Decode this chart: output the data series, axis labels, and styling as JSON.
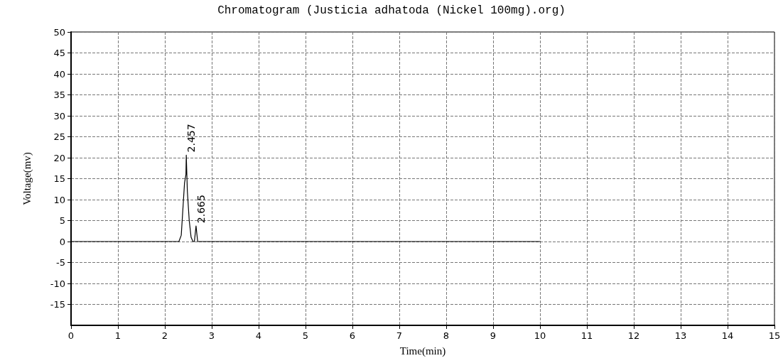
{
  "chart_data": {
    "type": "line",
    "title": "Chromatogram (Justicia adhatoda (Nickel 100mg).org)",
    "xlabel": "Time(min)",
    "ylabel": "Voltage(mv)",
    "x": [
      0,
      2.3,
      2.35,
      2.39,
      2.42,
      2.45,
      2.457,
      2.48,
      2.52,
      2.56,
      2.6,
      2.63,
      2.665,
      2.7,
      10
    ],
    "series": [
      {
        "color": "#000000",
        "values": [
          0,
          0,
          1.5,
          8.7,
          14,
          16,
          20.6,
          12,
          5,
          1,
          0,
          0,
          3.7,
          0,
          0
        ]
      }
    ],
    "xlim": [
      0,
      15
    ],
    "xticks": [
      0,
      1,
      2,
      3,
      4,
      5,
      6,
      7,
      8,
      9,
      10,
      11,
      12,
      13,
      14,
      15
    ],
    "ylim": [
      -20,
      50
    ],
    "yticks": [
      -15,
      -10,
      -5,
      0,
      5,
      10,
      15,
      20,
      25,
      30,
      35,
      40,
      45,
      50
    ],
    "grid": true,
    "marker": "none",
    "line_style": "solid",
    "annotations": [
      {
        "text": "2.457",
        "x": 2.457,
        "y": 20.6
      },
      {
        "text": "2.665",
        "x": 2.665,
        "y": 3.7
      }
    ]
  }
}
